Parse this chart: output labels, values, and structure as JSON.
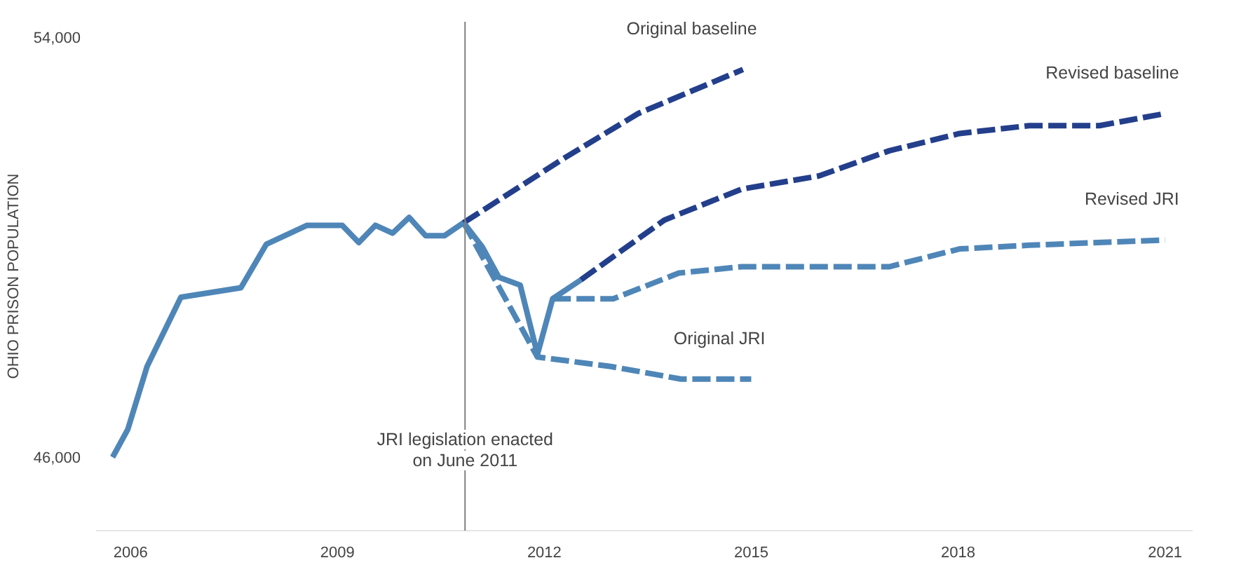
{
  "chart_data": {
    "type": "line",
    "ylabel": "OHIO PRISON POPULATION",
    "ylim": [
      44600,
      54300
    ],
    "xlim": [
      2005.5,
      2021.4
    ],
    "xticks": [
      2006,
      2009,
      2012,
      2015,
      2018,
      2021
    ],
    "yticks": [
      {
        "value": 46000,
        "label": "46,000"
      },
      {
        "value": 54000,
        "label": "54,000"
      }
    ],
    "grid": false,
    "ref_lines": [
      {
        "axis": "x",
        "value": 2010.85,
        "label": "JRI legislation enacted\non June 2011",
        "color": "#808080"
      }
    ],
    "series": [
      {
        "color": "#4f86b8",
        "line_style": "solid",
        "x": [
          2005.74,
          2005.96,
          2006.24,
          2006.73,
          2007.6,
          2007.97,
          2008.56,
          2009.07,
          2009.31,
          2009.55,
          2009.8,
          2010.04,
          2010.28,
          2010.55,
          2010.83,
          2011.1,
          2011.34,
          2011.65,
          2011.9,
          2012.12,
          2012.53
        ],
        "values": [
          46000,
          46530,
          47730,
          49050,
          49230,
          50060,
          50420,
          50420,
          50090,
          50420,
          50270,
          50570,
          50220,
          50220,
          50470,
          50010,
          49430,
          49280,
          47960,
          49020,
          49380
        ]
      },
      {
        "name": "Original baseline",
        "color": "#233f8c",
        "line_style": "dashed",
        "x": [
          2010.83,
          2012.3,
          2013.36,
          2014.88
        ],
        "values": [
          50470,
          51710,
          52550,
          53390
        ]
      },
      {
        "name": "Revised baseline",
        "color": "#233f8c",
        "line_style": "dashed",
        "x": [
          2012.53,
          2013.74,
          2014.86,
          2015.98,
          2017.0,
          2018.02,
          2019.03,
          2020.05,
          2021.0
        ],
        "values": [
          49380,
          50520,
          51110,
          51360,
          51840,
          52170,
          52320,
          52320,
          52550
        ]
      },
      {
        "name": "Revised JRI",
        "color": "#4f86b8",
        "line_style": "dashed",
        "x": [
          2012.12,
          2013.0,
          2013.95,
          2014.86,
          2017.0,
          2018.02,
          2019.03,
          2021.0
        ],
        "values": [
          49020,
          49020,
          49510,
          49630,
          49630,
          49970,
          50040,
          50140
        ]
      },
      {
        "name": "Original JRI",
        "color": "#4f86b8",
        "line_style": "dashed",
        "x": [
          2010.83,
          2011.9,
          2012.96,
          2013.98,
          2015.0
        ],
        "values": [
          50470,
          47910,
          47730,
          47490,
          47490
        ]
      }
    ]
  }
}
